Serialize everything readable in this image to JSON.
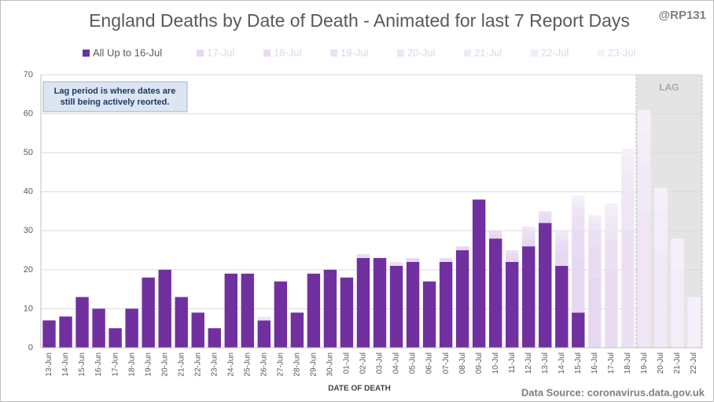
{
  "chart_data": {
    "type": "stacked_bar",
    "title": "England Deaths by Date of Death - Animated for last 7 Report Days",
    "credit": "@RP131",
    "source": "Data Source: coronavirus.data.gov.uk",
    "x_label": "DATE OF DEATH",
    "note": [
      "Lag period is where dates are",
      "still being actively reorted."
    ],
    "lag": {
      "text": "LAG",
      "from": "19-Jul"
    },
    "categories": [
      "13-Jun",
      "14-Jun",
      "15-Jun",
      "16-Jun",
      "17-Jun",
      "18-Jun",
      "19-Jun",
      "20-Jun",
      "21-Jun",
      "22-Jun",
      "23-Jun",
      "24-Jun",
      "25-Jun",
      "26-Jun",
      "27-Jun",
      "28-Jun",
      "29-Jun",
      "30-Jun",
      "01-Jul",
      "02-Jul",
      "03-Jul",
      "04-Jul",
      "05-Jul",
      "06-Jul",
      "07-Jul",
      "08-Jul",
      "09-Jul",
      "10-Jul",
      "11-Jul",
      "12-Jul",
      "13-Jul",
      "14-Jul",
      "15-Jul",
      "16-Jul",
      "17-Jul",
      "18-Jul",
      "19-Jul",
      "20-Jul",
      "21-Jul",
      "22-Jul"
    ],
    "series": [
      {
        "name": "All Up to 16-Jul",
        "color": "#7030a0",
        "values": [
          7,
          8,
          13,
          10,
          5,
          10,
          18,
          20,
          13,
          9,
          5,
          19,
          19,
          7,
          17,
          9,
          19,
          20,
          18,
          23,
          23,
          21,
          22,
          17,
          22,
          25,
          38,
          28,
          22,
          26,
          32,
          21,
          9,
          0,
          0,
          0,
          0,
          0,
          0,
          0
        ]
      },
      {
        "name": "17-Jul",
        "color": "#e6d8f0",
        "values": [
          0,
          0,
          0,
          0,
          0,
          0,
          0,
          0,
          0,
          0,
          0,
          0,
          0,
          0,
          0,
          0,
          0,
          0,
          0,
          0,
          0,
          0,
          1,
          0,
          0,
          1,
          0,
          1,
          1,
          2,
          1,
          4,
          14,
          18,
          0,
          0,
          0,
          0,
          0,
          0
        ]
      },
      {
        "name": "18-Jul",
        "color": "#e9dcf2",
        "values": [
          0,
          0,
          0,
          0,
          0,
          0,
          0,
          0,
          0,
          0,
          0,
          0,
          0,
          0,
          0,
          0,
          0,
          0,
          0,
          1,
          0,
          0,
          0,
          0,
          1,
          0,
          0,
          1,
          1,
          1,
          1,
          2,
          7,
          8,
          20,
          0,
          0,
          0,
          0,
          0
        ]
      },
      {
        "name": "19-Jul",
        "color": "#ece1f4",
        "values": [
          0,
          0,
          0,
          0,
          0,
          0,
          0,
          0,
          0,
          0,
          0,
          0,
          0,
          0,
          0,
          0,
          0,
          0,
          0,
          0,
          0,
          1,
          0,
          0,
          0,
          0,
          0,
          0,
          1,
          1,
          1,
          1,
          4,
          4,
          8,
          30,
          0,
          0,
          0,
          0
        ]
      },
      {
        "name": "20-Jul",
        "color": "#efe5f5",
        "values": [
          0,
          0,
          0,
          0,
          0,
          0,
          0,
          0,
          0,
          0,
          0,
          0,
          0,
          1,
          0,
          0,
          0,
          0,
          0,
          0,
          0,
          0,
          0,
          0,
          0,
          0,
          0,
          0,
          0,
          1,
          0,
          1,
          2,
          2,
          4,
          10,
          35,
          0,
          0,
          0
        ]
      },
      {
        "name": "21-Jul",
        "color": "#f1e9f7",
        "values": [
          0,
          0,
          0,
          0,
          0,
          0,
          0,
          0,
          0,
          0,
          0,
          0,
          0,
          0,
          0,
          0,
          0,
          0,
          0,
          0,
          0,
          0,
          0,
          0,
          0,
          0,
          0,
          0,
          0,
          0,
          0,
          1,
          1,
          1,
          2,
          5,
          12,
          25,
          0,
          0
        ]
      },
      {
        "name": "22-Jul",
        "color": "#f3edf8",
        "values": [
          0,
          0,
          0,
          0,
          0,
          0,
          0,
          0,
          0,
          0,
          0,
          0,
          0,
          0,
          0,
          0,
          0,
          0,
          0,
          0,
          0,
          0,
          0,
          0,
          0,
          0,
          0,
          0,
          0,
          0,
          0,
          0,
          1,
          1,
          2,
          4,
          8,
          10,
          20,
          0
        ]
      },
      {
        "name": "23-Jul",
        "color": "#f5f0fa",
        "values": [
          0,
          0,
          0,
          0,
          0,
          0,
          0,
          0,
          0,
          0,
          0,
          0,
          0,
          0,
          0,
          0,
          0,
          0,
          0,
          0,
          0,
          0,
          0,
          0,
          0,
          0,
          0,
          0,
          0,
          0,
          0,
          0,
          1,
          0,
          1,
          2,
          6,
          6,
          8,
          13
        ]
      }
    ],
    "ylim": [
      0,
      70
    ],
    "yticks": [
      0,
      10,
      20,
      30,
      40,
      50,
      60,
      70
    ],
    "grid": true
  }
}
